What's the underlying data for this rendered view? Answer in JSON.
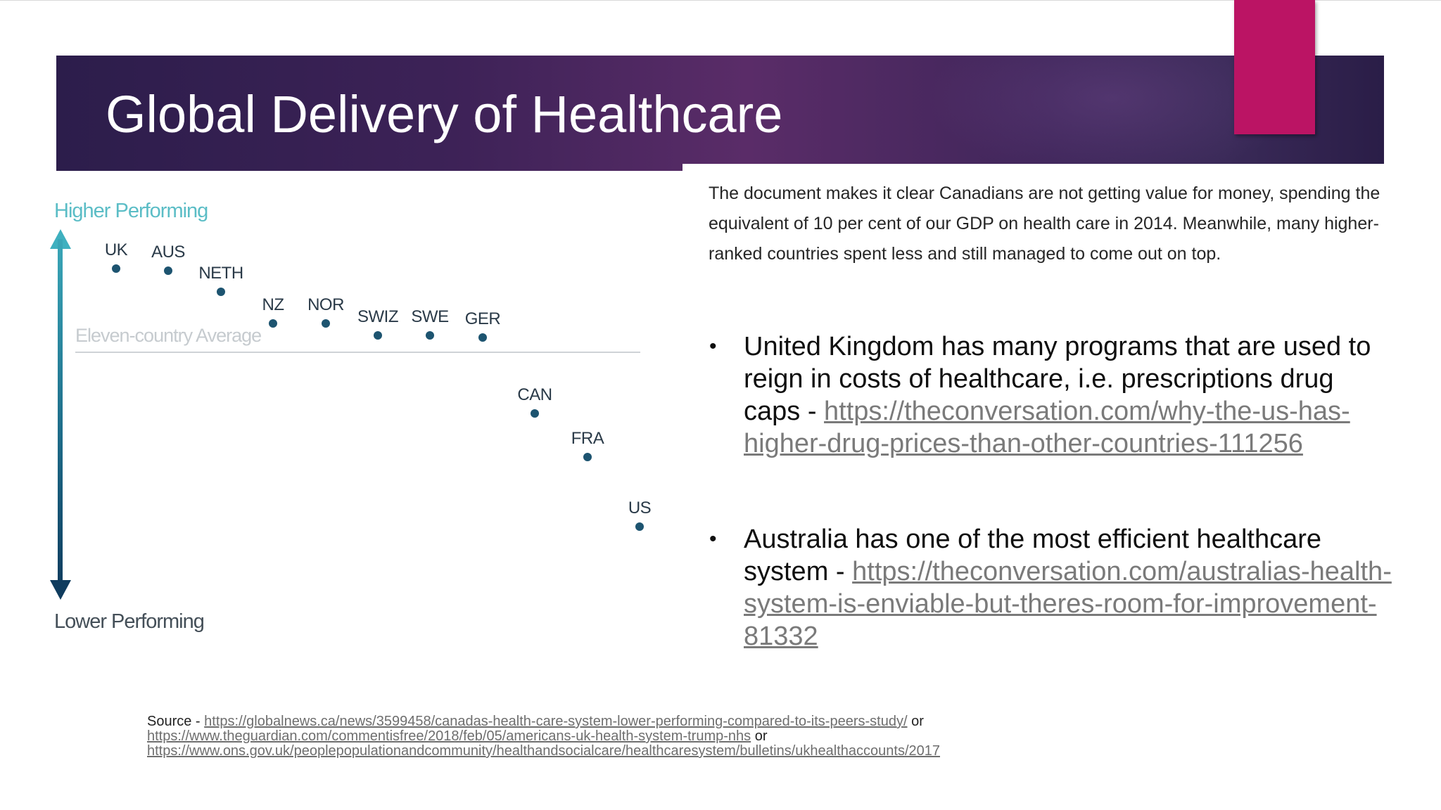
{
  "slide": {
    "title": "Global Delivery of Healthcare"
  },
  "chart_data": {
    "type": "scatter",
    "title": "",
    "ylabel_top": "Higher Performing",
    "ylabel_bottom": "Lower Performing",
    "reference_line": "Eleven-country Average",
    "points": [
      {
        "label": "UK",
        "rank": 1
      },
      {
        "label": "AUS",
        "rank": 2
      },
      {
        "label": "NETH",
        "rank": 3
      },
      {
        "label": "NZ",
        "rank": 4
      },
      {
        "label": "NOR",
        "rank": 5
      },
      {
        "label": "SWIZ",
        "rank": 6
      },
      {
        "label": "SWE",
        "rank": 7
      },
      {
        "label": "GER",
        "rank": 8
      },
      {
        "label": "CAN",
        "rank": 9
      },
      {
        "label": "FRA",
        "rank": 10
      },
      {
        "label": "US",
        "rank": 11
      }
    ]
  },
  "intro": "The document makes it clear Canadians are not getting value for money, spending the equivalent of 10 per cent of our GDP on health care in 2014. Meanwhile, many higher-ranked countries spent less and still managed to come out on top.",
  "bullets": [
    {
      "mark": "•",
      "text": "United Kingdom has many programs that are used to reign in costs of healthcare, i.e. prescriptions drug caps - ",
      "link": "https://theconversation.com/why-the-us-has-higher-drug-prices-than-other-countries-111256"
    },
    {
      "mark": "•",
      "text": "Australia has one of the most efficient healthcare system - ",
      "link": "https://theconversation.com/australias-health-system-is-enviable-but-theres-room-for-improvement-81332"
    }
  ],
  "source": {
    "prefix": "Source - ",
    "link1": "https://globalnews.ca/news/3599458/canadas-health-care-system-lower-performing-compared-to-its-peers-study/",
    "or1": " or",
    "link2": "https://www.theguardian.com/commentisfree/2018/feb/05/americans-uk-health-system-trump-nhs",
    "or2": " or",
    "link3": "https://www.ons.gov.uk/peoplepopulationandcommunity/healthandsocialcare/healthcaresystem/bulletins/ukhealthaccounts/2017"
  },
  "colors": {
    "accent": "#bb1464",
    "banner": "#3d2257",
    "dot": "#1d5470",
    "link": "#7a7a7a"
  }
}
